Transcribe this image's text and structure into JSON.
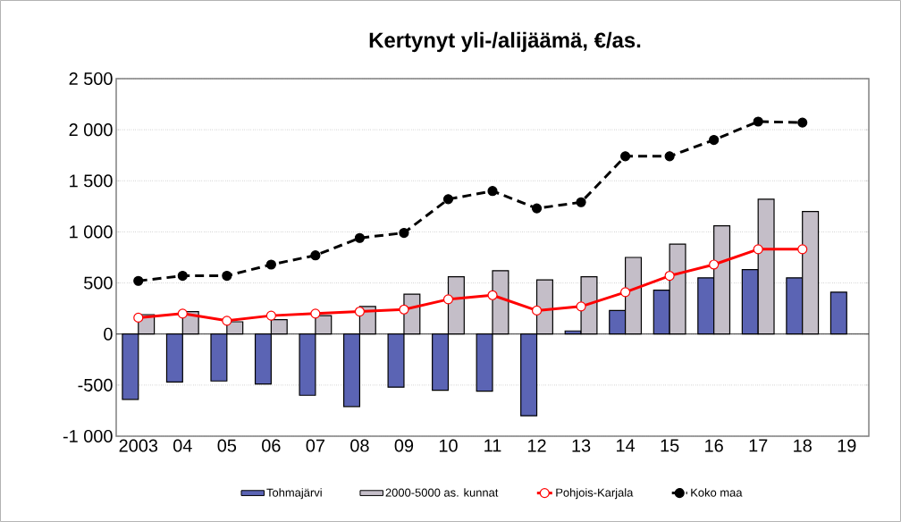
{
  "chart_data": {
    "type": "bar",
    "title": "Kertynyt yli-/alijäämä, €/as.",
    "categories": [
      "2003",
      "04",
      "05",
      "06",
      "07",
      "08",
      "09",
      "10",
      "11",
      "12",
      "13",
      "14",
      "15",
      "16",
      "17",
      "18",
      "19"
    ],
    "series": [
      {
        "name": "Tohmajärvi",
        "color": "#5b64b4",
        "values": [
          -640,
          -470,
          -460,
          -490,
          -600,
          -710,
          -520,
          -550,
          -560,
          -800,
          30,
          230,
          430,
          550,
          630,
          550,
          410
        ]
      },
      {
        "name": "2000-5000 as. kunnat",
        "color": "#c4bec8",
        "values": [
          190,
          220,
          120,
          140,
          180,
          270,
          390,
          560,
          620,
          530,
          560,
          750,
          880,
          1060,
          1320,
          1200,
          null
        ]
      },
      {
        "name": "Pohjois-Karjala",
        "type": "line",
        "color": "#ff0000",
        "marker": "circle",
        "line_style": "solid",
        "values": [
          160,
          200,
          130,
          180,
          200,
          220,
          240,
          340,
          380,
          230,
          270,
          410,
          570,
          680,
          830,
          830,
          null
        ]
      },
      {
        "name": "Koko maa",
        "type": "line",
        "color": "#000000",
        "marker": "circle",
        "line_style": "dashed",
        "values": [
          520,
          570,
          570,
          680,
          770,
          940,
          990,
          1320,
          1400,
          1230,
          1290,
          1740,
          1740,
          1900,
          2080,
          2070,
          null
        ]
      }
    ],
    "ylim": [
      -1000,
      2500
    ],
    "yticks": [
      {
        "value": -1000,
        "label": "-1 000"
      },
      {
        "value": -500,
        "label": "-500"
      },
      {
        "value": 0,
        "label": "0"
      },
      {
        "value": 500,
        "label": "500"
      },
      {
        "value": 1000,
        "label": "1 000"
      },
      {
        "value": 1500,
        "label": "1 500"
      },
      {
        "value": 2000,
        "label": "2 000"
      },
      {
        "value": 2500,
        "label": "2 500"
      }
    ],
    "grid": "y",
    "legend": "bottom"
  }
}
